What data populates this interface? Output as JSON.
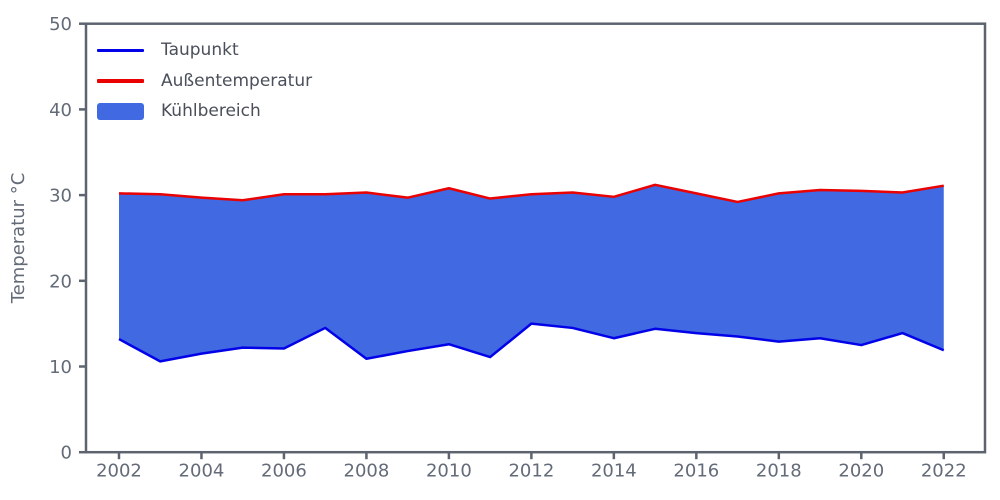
{
  "figure": {
    "background": "#ffffff"
  },
  "legend": {
    "items": [
      {
        "label": "Taupunkt",
        "swatch": "line",
        "color": "#0202e8"
      },
      {
        "label": "Außentemperatur",
        "swatch": "line",
        "color": "#ea0202"
      },
      {
        "label": "Kühlbereich",
        "swatch": "patch",
        "color": "#4169e1"
      }
    ]
  },
  "chart_data": {
    "type": "area",
    "title": "",
    "xlabel": "",
    "ylabel": "Temperatur °C",
    "grid": false,
    "legend_position": "upper-left",
    "x": [
      2002,
      2003,
      2004,
      2005,
      2006,
      2007,
      2008,
      2009,
      2010,
      2011,
      2012,
      2013,
      2014,
      2015,
      2016,
      2017,
      2018,
      2019,
      2020,
      2021,
      2022
    ],
    "series": [
      {
        "name": "Taupunkt",
        "color": "#0202e8",
        "values": [
          13.2,
          10.6,
          11.5,
          12.2,
          12.1,
          14.5,
          10.9,
          11.8,
          12.6,
          11.1,
          15.0,
          14.5,
          13.3,
          14.4,
          13.9,
          13.5,
          12.9,
          13.3,
          12.5,
          13.9,
          11.9
        ]
      },
      {
        "name": "Außentemperatur",
        "color": "#ea0202",
        "values": [
          30.2,
          30.1,
          29.7,
          29.4,
          30.1,
          30.1,
          30.3,
          29.7,
          30.8,
          29.6,
          30.1,
          30.3,
          29.8,
          31.2,
          30.2,
          29.2,
          30.2,
          30.6,
          30.5,
          30.3,
          31.1
        ]
      }
    ],
    "fill_between": {
      "name": "Kühlbereich",
      "color": "#4169e1",
      "lower_series": "Taupunkt",
      "upper_series": "Außentemperatur"
    },
    "xlim": [
      2001.2,
      2023.0
    ],
    "ylim": [
      0,
      50
    ],
    "xticks": [
      2002,
      2004,
      2006,
      2008,
      2010,
      2012,
      2014,
      2016,
      2018,
      2020,
      2022
    ],
    "yticks": [
      0,
      10,
      20,
      30,
      40,
      50
    ],
    "axis_color": "#5d6470",
    "tick_label_color": "#646b78"
  }
}
